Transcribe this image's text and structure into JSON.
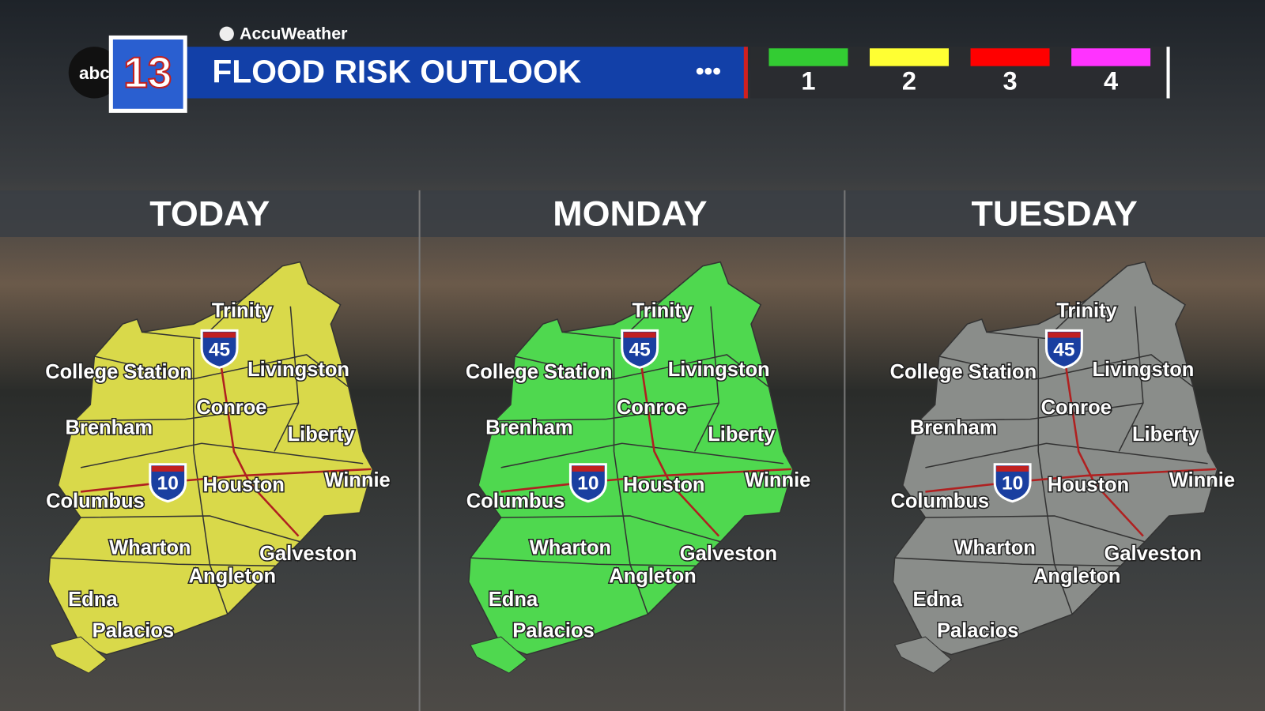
{
  "header": {
    "network": "abc",
    "channel": "13",
    "provider": "AccuWeather",
    "title": "FLOOD RISK OUTLOOK"
  },
  "legend": [
    {
      "label": "1",
      "color": "#33cc33"
    },
    {
      "label": "2",
      "color": "#ffff33"
    },
    {
      "label": "3",
      "color": "#ff0000"
    },
    {
      "label": "4",
      "color": "#ff33ff"
    }
  ],
  "cities": [
    "Trinity",
    "College Station",
    "Livingston",
    "Conroe",
    "Brenham",
    "Liberty",
    "Houston",
    "Winnie",
    "Columbus",
    "Wharton",
    "Galveston",
    "Angleton",
    "Edna",
    "Palacios"
  ],
  "highways": [
    "45",
    "10"
  ],
  "panels": [
    {
      "day": "TODAY",
      "fill": "#d9d94a"
    },
    {
      "day": "MONDAY",
      "fill": "#4fd84f"
    },
    {
      "day": "TUESDAY",
      "fill": "#8a8d8a"
    }
  ]
}
